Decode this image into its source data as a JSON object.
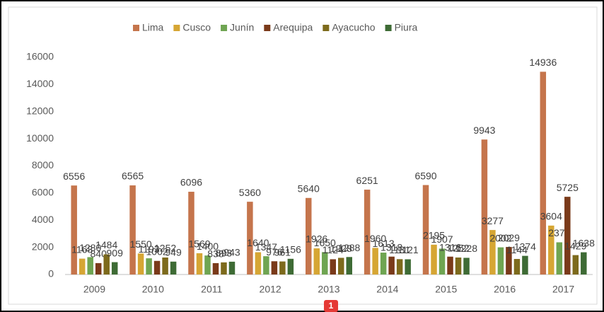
{
  "chart_data": {
    "type": "bar",
    "categories": [
      "2009",
      "2010",
      "2011",
      "2012",
      "2013",
      "2014",
      "2015",
      "2016",
      "2017"
    ],
    "series": [
      {
        "name": "Lima",
        "color": "#c5754c",
        "values": [
          6556,
          6565,
          6096,
          5360,
          5640,
          6251,
          6590,
          9943,
          14936
        ]
      },
      {
        "name": "Cusco",
        "color": "#d6a634",
        "values": [
          1168,
          1550,
          1569,
          1640,
          1926,
          1960,
          2195,
          3277,
          3604
        ]
      },
      {
        "name": "Junín",
        "color": "#6fa552",
        "values": [
          1280,
          1193,
          1400,
          1347,
          1650,
          1613,
          1907,
          2002,
          2372
        ]
      },
      {
        "name": "Arequipa",
        "color": "#7a3a1a",
        "values": [
          840,
          1002,
          838,
          976,
          1124,
          1318,
          1316,
          2029,
          5725
        ]
      },
      {
        "name": "Ayacucho",
        "color": "#7d6a1c",
        "values": [
          1484,
          1252,
          893,
          961,
          1228,
          1131,
          1252,
          1144,
          1429
        ]
      },
      {
        "name": "Piura",
        "color": "#3e6b35",
        "values": [
          909,
          949,
          943,
          1156,
          1288,
          1121,
          1228,
          1374,
          1638
        ]
      }
    ],
    "ylim": [
      0,
      16000
    ],
    "yticks": [
      0,
      2000,
      4000,
      6000,
      8000,
      10000,
      12000,
      14000,
      16000
    ],
    "grid": false,
    "legend": "top",
    "annotation": "1"
  }
}
